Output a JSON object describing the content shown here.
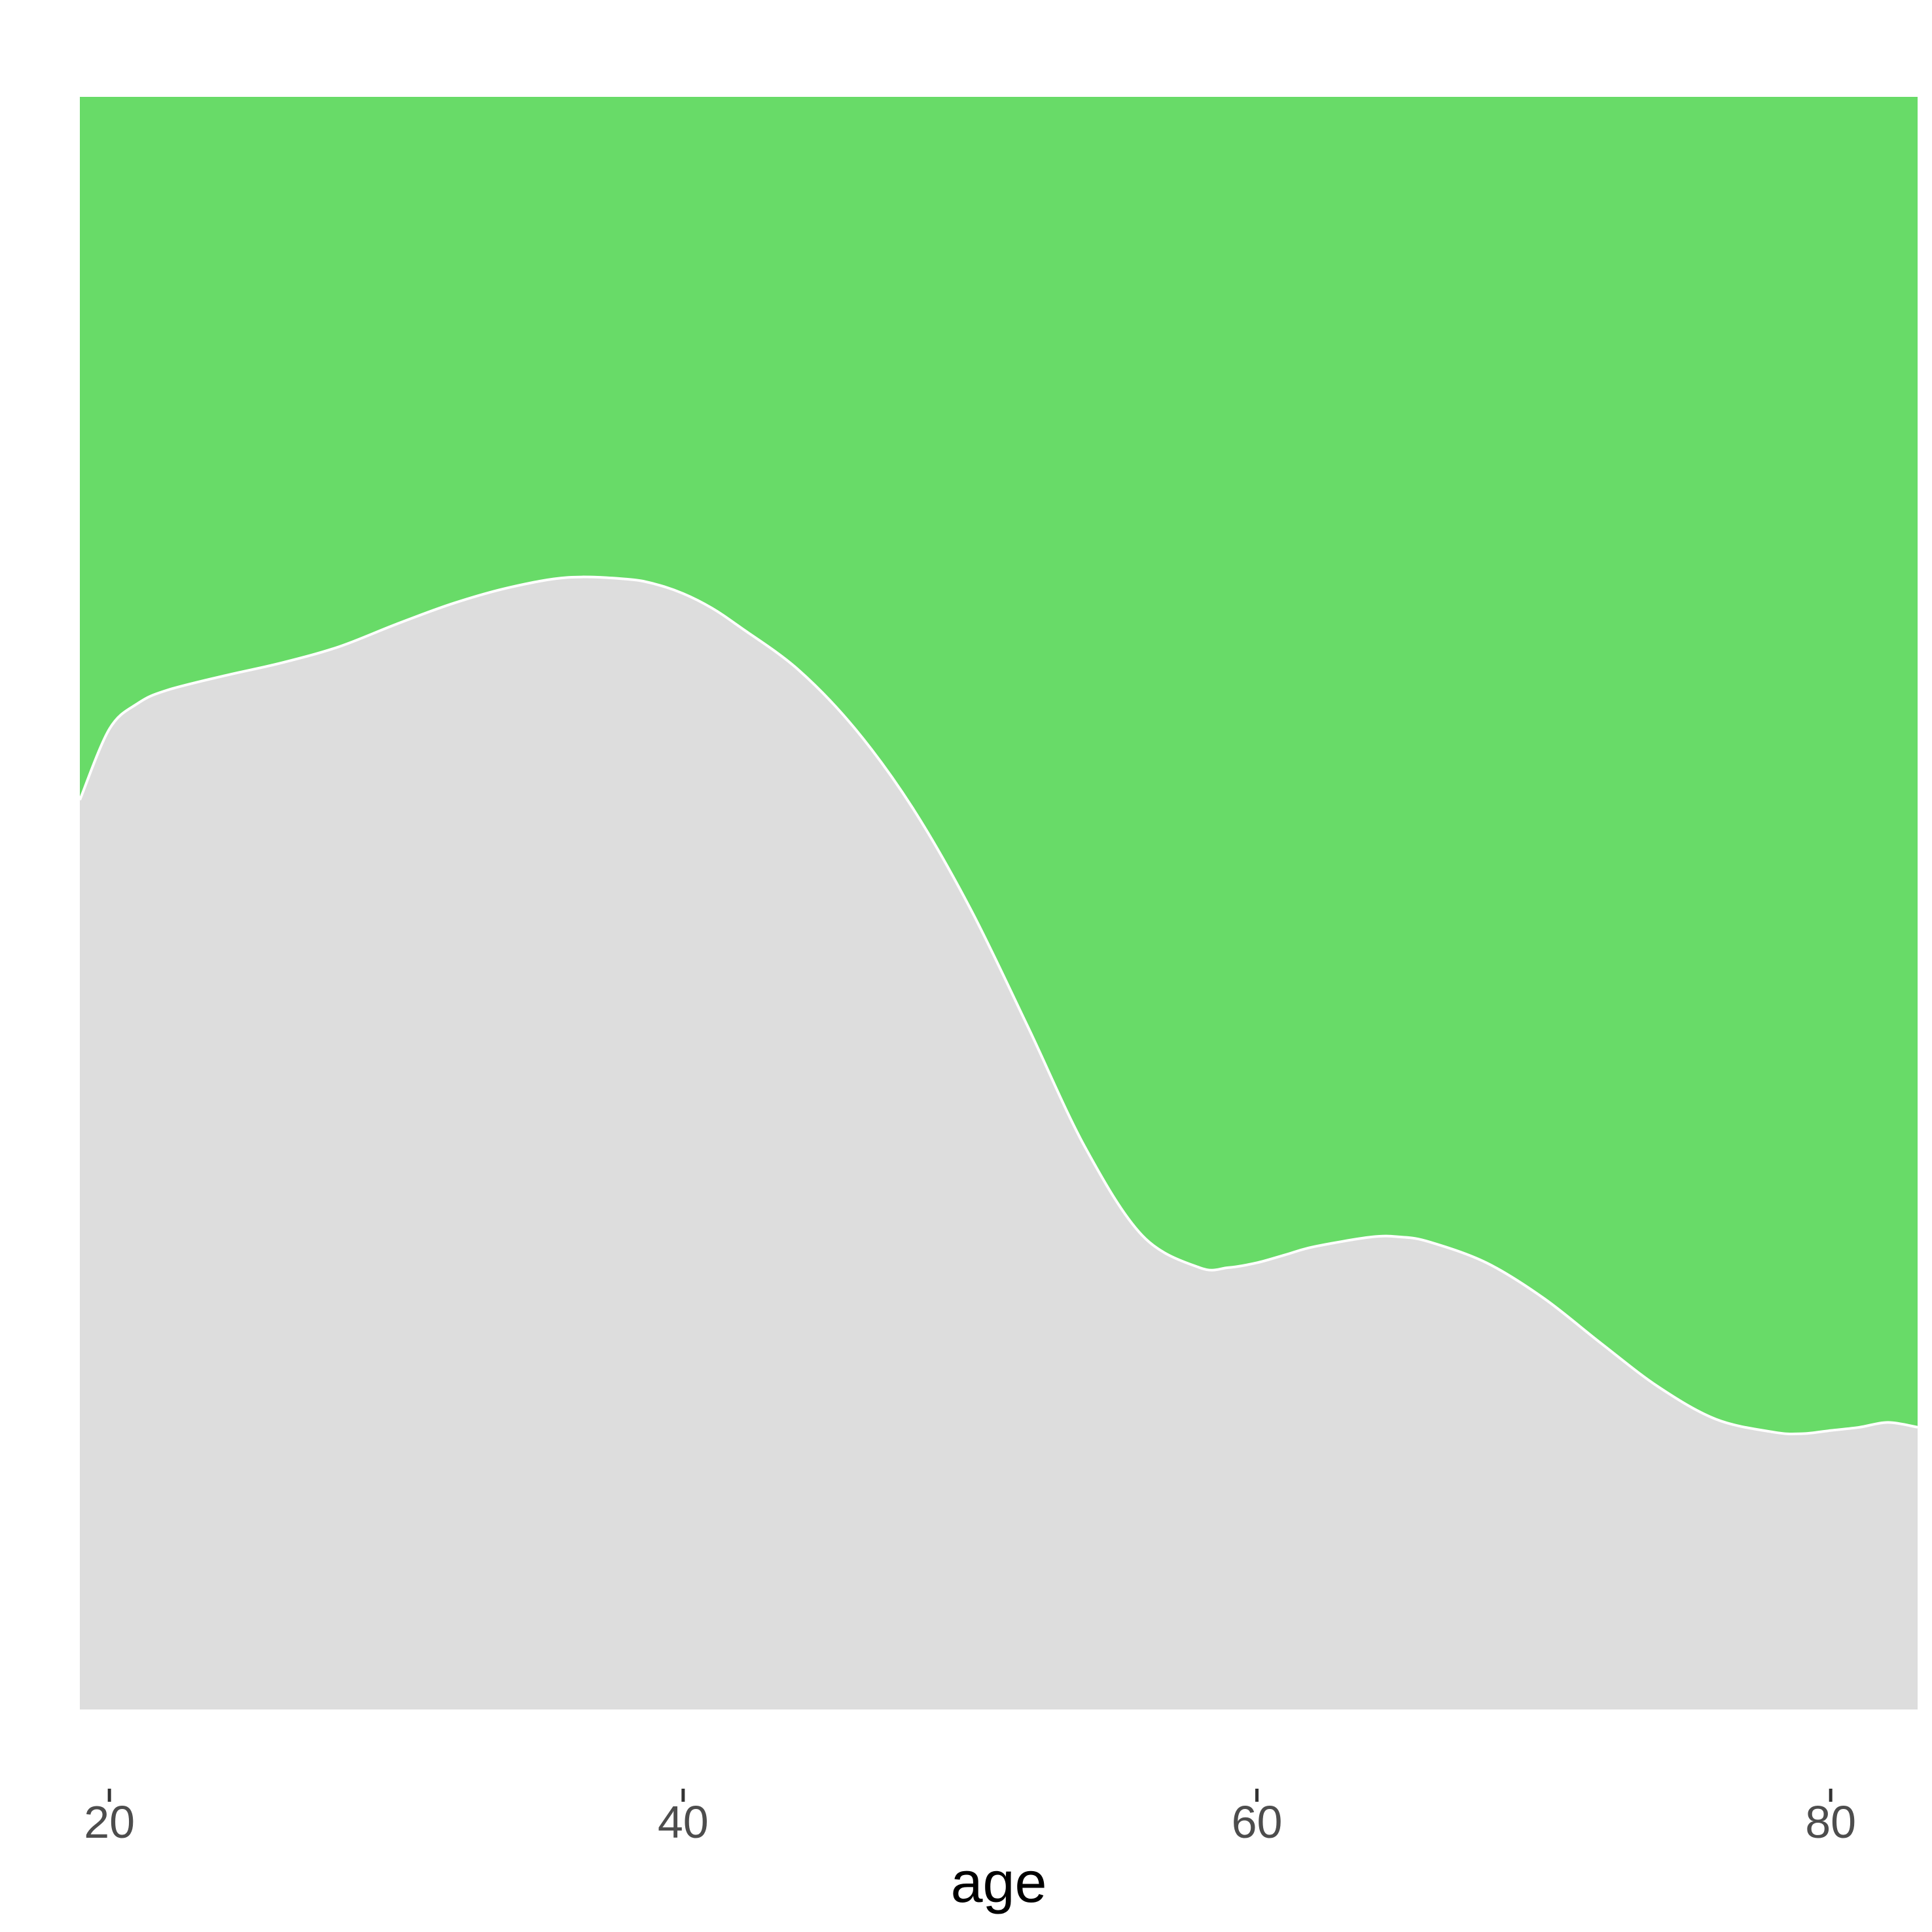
{
  "chart_data": {
    "type": "area",
    "subtype": "stacked-proportion",
    "title": "",
    "xlabel": "age",
    "ylabel": "",
    "xlim": [
      18.97,
      83.03
    ],
    "ylim": [
      0,
      1
    ],
    "x_ticks": [
      20,
      40,
      60,
      80
    ],
    "y_ticks_shown": false,
    "grid": false,
    "legend": "none",
    "boundary_color": "#ffffff",
    "series": [
      {
        "role": "lower",
        "color": "#dddddd",
        "x": [
          18.97,
          20,
          21,
          22,
          24,
          26,
          28,
          30,
          32,
          34,
          36,
          38,
          39,
          40,
          41,
          42,
          44,
          46,
          48,
          50,
          52,
          54,
          56,
          58,
          59,
          60,
          61,
          62,
          64,
          65,
          66,
          68,
          70,
          72,
          74,
          76,
          78,
          79,
          80,
          81,
          82,
          83.03
        ],
        "values": [
          0.564,
          0.608,
          0.624,
          0.632,
          0.641,
          0.649,
          0.659,
          0.673,
          0.686,
          0.696,
          0.702,
          0.701,
          0.698,
          0.692,
          0.683,
          0.671,
          0.645,
          0.608,
          0.559,
          0.497,
          0.424,
          0.349,
          0.294,
          0.274,
          0.274,
          0.277,
          0.282,
          0.287,
          0.293,
          0.293,
          0.29,
          0.277,
          0.255,
          0.227,
          0.2,
          0.18,
          0.172,
          0.171,
          0.173,
          0.175,
          0.178,
          0.175
        ]
      },
      {
        "role": "upper",
        "color": "#68db68",
        "x": [
          18.97,
          83.03
        ],
        "values": [
          1,
          1
        ]
      }
    ]
  }
}
